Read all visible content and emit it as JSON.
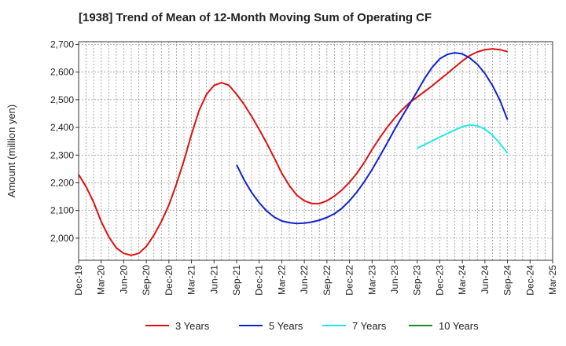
{
  "chart_data": {
    "type": "line",
    "title": "[1938]  Trend of Mean of 12-Month Moving Sum of Operating CF",
    "xlabel": "",
    "ylabel": "Amount (million yen)",
    "ylim": [
      1920,
      2710
    ],
    "y_ticks": [
      2000,
      2100,
      2200,
      2300,
      2400,
      2500,
      2600,
      2700
    ],
    "y_tick_labels": [
      "2,000",
      "2,100",
      "2,200",
      "2,300",
      "2,400",
      "2,500",
      "2,600",
      "2,700"
    ],
    "x_range_months": [
      0,
      63
    ],
    "x_ticks": [
      {
        "label": "Dec-19",
        "m": 0
      },
      {
        "label": "Mar-20",
        "m": 3
      },
      {
        "label": "Jun-20",
        "m": 6
      },
      {
        "label": "Sep-20",
        "m": 9
      },
      {
        "label": "Dec-20",
        "m": 12
      },
      {
        "label": "Mar-21",
        "m": 15
      },
      {
        "label": "Jun-21",
        "m": 18
      },
      {
        "label": "Sep-21",
        "m": 21
      },
      {
        "label": "Dec-21",
        "m": 24
      },
      {
        "label": "Mar-22",
        "m": 27
      },
      {
        "label": "Jun-22",
        "m": 30
      },
      {
        "label": "Sep-22",
        "m": 33
      },
      {
        "label": "Dec-22",
        "m": 36
      },
      {
        "label": "Mar-23",
        "m": 39
      },
      {
        "label": "Jun-23",
        "m": 42
      },
      {
        "label": "Sep-23",
        "m": 45
      },
      {
        "label": "Dec-23",
        "m": 48
      },
      {
        "label": "Mar-24",
        "m": 51
      },
      {
        "label": "Jun-24",
        "m": 54
      },
      {
        "label": "Sep-24",
        "m": 57
      },
      {
        "label": "Dec-24",
        "m": 60
      },
      {
        "label": "Mar-25",
        "m": 63
      }
    ],
    "grid": true,
    "legend_position": "bottom",
    "series": [
      {
        "name": "3 Years",
        "color": "#dd1111",
        "start_month": 0,
        "values": [
          2230,
          2185,
          2130,
          2060,
          2005,
          1965,
          1945,
          1938,
          1945,
          1970,
          2010,
          2060,
          2120,
          2195,
          2280,
          2375,
          2460,
          2520,
          2552,
          2562,
          2552,
          2520,
          2483,
          2440,
          2393,
          2343,
          2290,
          2235,
          2190,
          2155,
          2135,
          2125,
          2125,
          2135,
          2152,
          2174,
          2202,
          2235,
          2275,
          2320,
          2362,
          2400,
          2434,
          2464,
          2490,
          2510,
          2530,
          2551,
          2573,
          2595,
          2618,
          2640,
          2660,
          2673,
          2681,
          2684,
          2681,
          2674
        ]
      },
      {
        "name": "5 Years",
        "color": "#1122cc",
        "start_month": 21,
        "values": [
          2265,
          2210,
          2165,
          2128,
          2098,
          2076,
          2062,
          2056,
          2053,
          2054,
          2058,
          2065,
          2075,
          2088,
          2108,
          2135,
          2167,
          2205,
          2248,
          2295,
          2343,
          2393,
          2440,
          2485,
          2530,
          2578,
          2618,
          2648,
          2664,
          2670,
          2666,
          2651,
          2628,
          2595,
          2552,
          2498,
          2428
        ]
      },
      {
        "name": "7 Years",
        "color": "#22e8ee",
        "start_month": 45,
        "values": [
          2325,
          2338,
          2352,
          2365,
          2378,
          2391,
          2403,
          2409,
          2406,
          2394,
          2372,
          2342,
          2307
        ]
      },
      {
        "name": "10 Years",
        "color": "#228822",
        "start_month": 0,
        "values": []
      }
    ]
  }
}
